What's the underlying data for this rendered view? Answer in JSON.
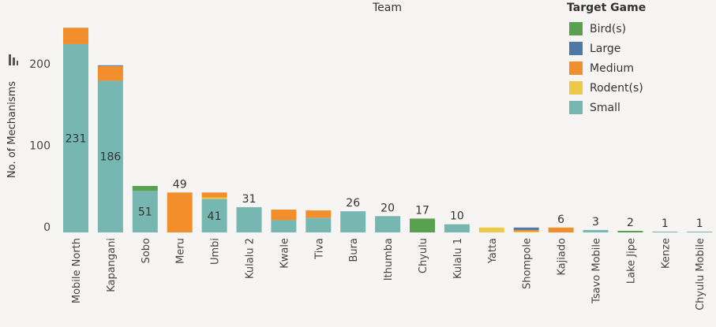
{
  "header": {
    "title": "Team"
  },
  "legend": {
    "title": "Target Game",
    "items": [
      {
        "label": "Bird(s)",
        "color": "#59a14f"
      },
      {
        "label": "Large",
        "color": "#4e79a7"
      },
      {
        "label": "Medium",
        "color": "#f28e2b"
      },
      {
        "label": "Rodent(s)",
        "color": "#edc948"
      },
      {
        "label": "Small",
        "color": "#76b7b2"
      }
    ]
  },
  "axis": {
    "ylabel": "No. of Mechanisms",
    "sort_icon": "sort-descending-icon"
  },
  "chart_data": {
    "type": "bar",
    "stacked": true,
    "ylim": [
      0,
      260
    ],
    "yticks": [
      0,
      100,
      200
    ],
    "ylabel": "No. of Mechanisms",
    "xlabel": "Team",
    "categories": [
      "Mobile North",
      "Kapangani",
      "Sobo",
      "Meru",
      "Umbi",
      "Kulalu 2",
      "Kwale",
      "Tiva",
      "Bura",
      "Ithumba",
      "Chyulu",
      "Kulalu 1",
      "Yatta",
      "Shompole",
      "Kajiado",
      "Tsavo Mobile",
      "Lake Jipe",
      "Kenze",
      "Chyulu Mobile"
    ],
    "series": [
      {
        "name": "Small",
        "color": "#76b7b2",
        "values": [
          231,
          186,
          51,
          0,
          41,
          31,
          15,
          18,
          26,
          20,
          0,
          10,
          0,
          0,
          0,
          3,
          0,
          1,
          1
        ]
      },
      {
        "name": "Rodent(s)",
        "color": "#edc948",
        "values": [
          0,
          0,
          0,
          0,
          2,
          0,
          0,
          0,
          0,
          0,
          0,
          0,
          6,
          1,
          0,
          0,
          0,
          0,
          0
        ]
      },
      {
        "name": "Medium",
        "color": "#f28e2b",
        "values": [
          20,
          18,
          0,
          49,
          6,
          0,
          13,
          9,
          0,
          0,
          0,
          0,
          0,
          2,
          6,
          0,
          0,
          0,
          0
        ]
      },
      {
        "name": "Large",
        "color": "#4e79a7",
        "values": [
          0,
          1,
          0,
          0,
          0,
          0,
          0,
          0,
          0,
          0,
          0,
          0,
          0,
          3,
          0,
          0,
          0,
          0,
          0
        ]
      },
      {
        "name": "Bird(s)",
        "color": "#59a14f",
        "values": [
          0,
          0,
          6,
          0,
          0,
          0,
          0,
          0,
          0,
          0,
          17,
          0,
          0,
          0,
          0,
          0,
          2,
          0,
          0
        ]
      }
    ],
    "labels": [
      {
        "category": "Mobile North",
        "text": "231",
        "position": "inside"
      },
      {
        "category": "Kapangani",
        "text": "186",
        "position": "inside"
      },
      {
        "category": "Sobo",
        "text": "51",
        "position": "inside"
      },
      {
        "category": "Meru",
        "text": "49",
        "position": "above"
      },
      {
        "category": "Umbi",
        "text": "41",
        "position": "inside"
      },
      {
        "category": "Kulalu 2",
        "text": "31",
        "position": "above"
      },
      {
        "category": "Bura",
        "text": "26",
        "position": "above"
      },
      {
        "category": "Ithumba",
        "text": "20",
        "position": "above"
      },
      {
        "category": "Chyulu",
        "text": "17",
        "position": "above"
      },
      {
        "category": "Kulalu 1",
        "text": "10",
        "position": "above"
      },
      {
        "category": "Kajiado",
        "text": "6",
        "position": "above"
      },
      {
        "category": "Tsavo Mobile",
        "text": "3",
        "position": "above"
      },
      {
        "category": "Lake Jipe",
        "text": "2",
        "position": "above"
      },
      {
        "category": "Kenze",
        "text": "1",
        "position": "above"
      },
      {
        "category": "Chyulu Mobile",
        "text": "1",
        "position": "above"
      }
    ]
  }
}
